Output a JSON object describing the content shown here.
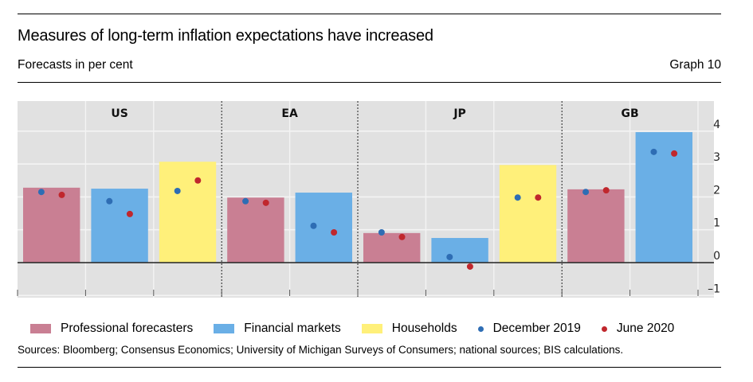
{
  "header": {
    "title": "Measures of long-term inflation expectations have increased",
    "subtitle": "Forecasts in per cent",
    "graph_number": "Graph 10"
  },
  "footer": {
    "sources": "Sources: Bloomberg; Consensus Economics; University of Michigan Surveys of Consumers; national sources; BIS calculations."
  },
  "colors": {
    "professional": "#c97f93",
    "financial": "#6aafe6",
    "households": "#fff07a",
    "dec2019": "#2e6db4",
    "jun2020": "#c0272d",
    "plot_bg": "#e1e1e1",
    "grid": "#f4f4f4"
  },
  "legend": [
    {
      "label": "Professional forecasters",
      "kind": "swatch",
      "color_key": "professional"
    },
    {
      "label": "Financial markets",
      "kind": "swatch",
      "color_key": "financial"
    },
    {
      "label": "Households",
      "kind": "swatch",
      "color_key": "households"
    },
    {
      "label": "December 2019",
      "kind": "dot",
      "color_key": "dec2019"
    },
    {
      "label": "June 2020",
      "kind": "dot",
      "color_key": "jun2020"
    }
  ],
  "chart_data": {
    "type": "bar",
    "title": "Measures of long-term inflation expectations have increased",
    "subtitle": "Forecasts in per cent",
    "xlabel": "",
    "ylabel": "",
    "ylim": [
      -1,
      4.6
    ],
    "yticks": [
      4,
      3,
      2,
      1,
      0,
      -1
    ],
    "ytick_labels": [
      "4",
      "3",
      "2",
      "1",
      "0",
      "–1"
    ],
    "y_axis_side": "right",
    "grid": true,
    "legend_position": "bottom",
    "groups": [
      {
        "name": "US",
        "categories": [
          "Professional forecasters",
          "Financial markets",
          "Households"
        ]
      },
      {
        "name": "EA",
        "categories": [
          "Professional forecasters",
          "Financial markets"
        ]
      },
      {
        "name": "JP",
        "categories": [
          "Professional forecasters",
          "Financial markets",
          "Households"
        ]
      },
      {
        "name": "GB",
        "categories": [
          "Professional forecasters",
          "Financial markets"
        ]
      }
    ],
    "bars": [
      {
        "group": "US",
        "type": "professional",
        "value": 2.28,
        "dec2019": 2.15,
        "jun2020": 2.06
      },
      {
        "group": "US",
        "type": "financial",
        "value": 2.25,
        "dec2019": 1.87,
        "jun2020": 1.48
      },
      {
        "group": "US",
        "type": "households",
        "value": 3.07,
        "dec2019": 2.18,
        "jun2020": 2.5
      },
      {
        "group": "EA",
        "type": "professional",
        "value": 1.98,
        "dec2019": 1.87,
        "jun2020": 1.82
      },
      {
        "group": "EA",
        "type": "financial",
        "value": 2.13,
        "dec2019": 1.12,
        "jun2020": 0.92
      },
      {
        "group": "JP",
        "type": "professional",
        "value": 0.9,
        "dec2019": 0.92,
        "jun2020": 0.78
      },
      {
        "group": "JP",
        "type": "financial",
        "value": 0.75,
        "dec2019": 0.17,
        "jun2020": -0.12
      },
      {
        "group": "JP",
        "type": "households",
        "value": 2.97,
        "dec2019": 1.98,
        "jun2020": 1.98
      },
      {
        "group": "GB",
        "type": "professional",
        "value": 2.23,
        "dec2019": 2.15,
        "jun2020": 2.2
      },
      {
        "group": "GB",
        "type": "financial",
        "value": 3.97,
        "dec2019": 3.37,
        "jun2020": 3.32
      }
    ],
    "series": [
      {
        "name": "Bars (latest)",
        "values": [
          2.28,
          2.25,
          3.07,
          1.98,
          2.13,
          0.9,
          0.75,
          2.97,
          2.23,
          3.97
        ]
      },
      {
        "name": "December 2019",
        "values": [
          2.15,
          1.87,
          2.18,
          1.87,
          1.12,
          0.92,
          0.17,
          1.98,
          2.15,
          3.37
        ]
      },
      {
        "name": "June 2020",
        "values": [
          2.06,
          1.48,
          2.5,
          1.82,
          0.92,
          0.78,
          -0.12,
          1.98,
          2.2,
          3.32
        ]
      }
    ]
  }
}
